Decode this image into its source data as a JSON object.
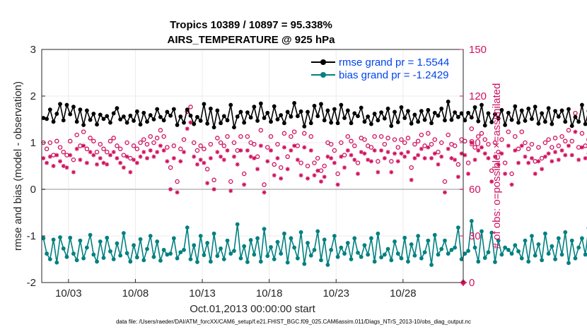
{
  "chart_data": {
    "type": "line",
    "title_line1": "Tropics 10389 / 10897 = 95.338%",
    "title_line2": "AIRS_TEMPERATURE @ 925 hPa",
    "xlabel": "Oct.01,2013 00:00:00 start",
    "ylabel": "rmse and bias (model - observation)",
    "ylabel_right": "# of obs: o=possible; ×=assimilated",
    "footnote": "data file: /Users/raeder/DAI/ATM_forcXX/CAM6_setup/f.e21.FHIST_BGC.f09_025.CAM6assim.011/Diags_NTrS_2013-10/obs_diag_output.nc",
    "xlim": [
      1,
      32.5
    ],
    "ylim": [
      -2,
      3
    ],
    "ylim_right": [
      0,
      150
    ],
    "x_ticks": [
      3,
      8,
      13,
      18,
      23,
      28
    ],
    "x_tick_labels": [
      "10/03",
      "10/08",
      "10/13",
      "10/18",
      "10/23",
      "10/28"
    ],
    "y_ticks": [
      -2,
      -1,
      0,
      1,
      2,
      3
    ],
    "y_tick_labels": [
      "-2",
      "-1",
      "0",
      "1",
      "2",
      "3"
    ],
    "y_right_ticks": [
      0,
      30,
      60,
      90,
      120,
      150
    ],
    "y_right_tick_labels": [
      "0",
      "30",
      "60",
      "90",
      "120",
      "150"
    ],
    "grid": true,
    "legend_position": "top-right",
    "colors": {
      "rmse": "#000000",
      "bias": "#008080",
      "obs": "#d0105f",
      "zero_line": "#c8c8c8",
      "grid": "#ebebeb",
      "axis": "#262626",
      "legend_text": "#0044ee"
    },
    "series": [
      {
        "name": "rmse grand pr = 1.5544",
        "x_start": 1.125,
        "x_step": 0.25,
        "values": [
          1.53,
          1.51,
          1.71,
          1.45,
          1.62,
          1.83,
          1.48,
          1.81,
          1.61,
          1.77,
          1.45,
          1.71,
          1.38,
          1.69,
          1.49,
          1.62,
          1.39,
          1.6,
          1.51,
          1.57,
          1.43,
          1.63,
          1.74,
          1.5,
          1.56,
          1.43,
          1.58,
          1.47,
          1.67,
          1.39,
          1.64,
          1.45,
          1.59,
          1.5,
          1.72,
          1.55,
          1.48,
          1.66,
          1.58,
          1.72,
          1.38,
          1.56,
          1.43,
          1.71,
          1.58,
          1.4,
          1.55,
          1.47,
          1.83,
          1.41,
          1.73,
          1.33,
          1.69,
          1.42,
          1.57,
          1.48,
          1.81,
          1.33,
          1.56,
          1.66,
          1.43,
          1.65,
          1.54,
          1.77,
          1.47,
          1.84,
          1.53,
          1.64,
          1.45,
          1.78,
          1.5,
          1.59,
          1.42,
          1.66,
          1.56,
          1.85,
          1.57,
          1.67,
          1.35,
          1.66,
          1.42,
          1.79,
          1.57,
          1.83,
          1.48,
          1.69,
          1.43,
          1.72,
          1.42,
          1.81,
          1.53,
          1.69,
          1.42,
          1.63,
          1.57,
          1.75,
          1.45,
          1.56,
          1.4,
          1.62,
          1.48,
          1.65,
          1.52,
          1.73,
          1.36,
          1.66,
          1.44,
          1.76,
          1.53,
          1.68,
          1.41,
          1.6,
          1.45,
          1.68,
          1.49,
          1.7,
          1.42,
          1.64,
          1.58,
          1.73,
          1.48,
          1.88,
          1.49,
          1.65,
          1.55,
          1.63,
          1.48,
          1.64,
          1.54,
          1.76,
          1.46,
          1.81,
          1.37,
          1.63,
          1.44,
          1.61,
          1.52,
          1.7,
          1.38,
          1.64,
          1.49,
          1.78,
          1.43,
          1.69,
          1.47,
          1.73,
          1.51,
          1.77,
          1.41,
          1.63,
          1.45,
          1.74,
          1.4,
          1.68,
          1.56,
          1.69,
          1.45,
          1.72,
          1.36,
          1.55,
          1.45,
          1.81,
          1.4,
          1.68,
          1.55,
          1.66,
          1.48,
          1.62,
          1.4,
          1.76,
          1.33,
          1.54,
          1.57,
          1.85,
          1.33,
          1.58,
          1.48,
          1.43
        ]
      },
      {
        "name": "bias grand pr = -1.2429",
        "x_start": 1.125,
        "x_step": 0.25,
        "values": [
          -1.05,
          -1.38,
          -1.5,
          -1.08,
          -1.57,
          -1.03,
          -1.27,
          -1.45,
          -1.04,
          -1.38,
          -1.52,
          -1.1,
          -1.48,
          -1.25,
          -0.98,
          -1.4,
          -1.55,
          -1.12,
          -1.47,
          -1.04,
          -1.33,
          -1.5,
          -1.16,
          -1.42,
          -0.94,
          -1.37,
          -1.55,
          -1.2,
          -1.46,
          -1.07,
          -1.52,
          -1.28,
          -1.0,
          -1.45,
          -1.12,
          -1.53,
          -1.3,
          -1.4,
          -1.38,
          -1.05,
          -1.48,
          -1.35,
          -1.3,
          -0.82,
          -1.5,
          -1.2,
          -1.56,
          -1.0,
          -1.41,
          -1.15,
          -1.55,
          -0.95,
          -1.43,
          -1.27,
          -1.5,
          -1.1,
          -1.38,
          -1.32,
          -0.75,
          -1.48,
          -1.22,
          -1.56,
          -1.09,
          -1.4,
          -1.05,
          -1.55,
          -0.85,
          -1.43,
          -1.24,
          -1.5,
          -1.13,
          -1.38,
          -0.95,
          -1.57,
          -1.05,
          -1.25,
          -1.48,
          -0.92,
          -1.6,
          -1.15,
          -1.42,
          -1.3,
          -0.9,
          -1.52,
          -1.08,
          -1.62,
          -1.3,
          -1.0,
          -1.45,
          -1.25,
          -1.38,
          -1.15,
          -1.5,
          -1.05,
          -1.36,
          -1.45,
          -1.2,
          -1.4,
          -1.05,
          -1.55,
          -0.95,
          -1.46,
          -1.4,
          -1.28,
          -1.52,
          -1.12,
          -1.38,
          -1.48,
          -1.04,
          -1.55,
          -1.18,
          -1.42,
          -1.0,
          -1.48,
          -1.35,
          -1.1,
          -1.62,
          -0.98,
          -1.4,
          -1.28,
          -1.1,
          -1.38,
          -1.3,
          -1.25,
          -0.82,
          -1.5,
          -1.38,
          -1.32,
          -0.68,
          -1.25,
          -1.55,
          -0.9,
          -1.47,
          -1.35,
          -0.93,
          -1.56,
          -1.1,
          -1.4,
          -1.25,
          -1.3,
          -1.38,
          -1.2,
          -1.33,
          -1.48,
          -1.1,
          -1.55,
          -1.0,
          -1.42,
          -1.18,
          -1.52,
          -0.95,
          -1.38,
          -1.22,
          -1.5,
          -1.05,
          -1.4,
          -0.92,
          -1.58,
          -1.1,
          -1.48,
          -1.25,
          -1.05,
          -1.4,
          -0.83,
          -1.55,
          -1.28,
          -1.42,
          -1.0,
          -1.38,
          -1.2,
          -1.5,
          -0.98,
          -1.37,
          -1.48,
          -1.28,
          -1.55,
          -1.15,
          -1.58,
          -1.05,
          -1.4,
          -1.2,
          -1.3
        ]
      },
      {
        "name": "obs possible",
        "x_start": 1.125,
        "x_step": 0.25,
        "values": [
          90,
          86,
          90,
          82,
          91,
          87,
          84,
          82,
          91,
          79,
          95,
          88,
          97,
          86,
          93,
          91,
          84,
          89,
          86,
          84,
          91,
          93,
          88,
          86,
          82,
          90,
          80,
          88,
          86,
          90,
          92,
          89,
          94,
          90,
          93,
          98,
          94,
          87,
          74,
          88,
          65,
          86,
          92,
          110,
          113,
          90,
          85,
          88,
          86,
          73,
          89,
          66,
          93,
          90,
          88,
          94,
          65,
          90,
          85,
          94,
          70,
          94,
          90,
          89,
          81,
          98,
          63,
          87,
          94,
          76,
          89,
          74,
          96,
          81,
          94,
          97,
          88,
          77,
          96,
          75,
          94,
          77,
          80,
          72,
          75,
          90,
          89,
          85,
          70,
          90,
          82,
          94,
          91,
          88,
          77,
          93,
          92,
          88,
          87,
          94,
          78,
          94,
          89,
          93,
          78,
          92,
          87,
          92,
          90,
          93,
          74,
          89,
          91,
          95,
          88,
          96,
          89,
          92,
          84,
          90,
          65,
          95,
          89,
          88,
          76,
          92,
          91,
          77,
          99,
          87,
          94,
          96,
          92,
          89,
          72,
          90,
          84,
          92,
          77,
          97,
          70,
          94,
          86,
          97,
          90,
          86,
          89,
          78,
          87,
          80,
          90,
          92,
          87,
          93,
          88,
          94,
          91,
          98,
          91,
          109,
          87,
          96,
          88,
          92,
          94,
          101,
          88,
          91,
          93,
          96,
          90,
          88,
          85,
          90,
          96,
          88,
          81,
          90,
          100,
          93
        ]
      },
      {
        "name": "obs assimilated",
        "x_start": 1.125,
        "x_step": 0.25,
        "values": [
          80,
          77,
          81,
          75,
          82,
          78,
          75,
          74,
          82,
          71,
          86,
          79,
          88,
          77,
          84,
          82,
          76,
          80,
          77,
          76,
          82,
          84,
          80,
          77,
          74,
          81,
          71,
          79,
          77,
          81,
          84,
          80,
          85,
          81,
          84,
          88,
          85,
          78,
          60,
          80,
          58,
          78,
          84,
          99,
          103,
          81,
          76,
          79,
          77,
          64,
          80,
          60,
          84,
          81,
          79,
          85,
          59,
          81,
          76,
          85,
          63,
          85,
          81,
          80,
          73,
          88,
          58,
          78,
          85,
          69,
          80,
          67,
          87,
          73,
          85,
          88,
          79,
          69,
          87,
          67,
          85,
          69,
          72,
          65,
          68,
          81,
          80,
          77,
          63,
          81,
          74,
          85,
          82,
          79,
          70,
          84,
          83,
          79,
          78,
          85,
          71,
          85,
          80,
          84,
          71,
          83,
          78,
          83,
          81,
          84,
          66,
          80,
          82,
          86,
          80,
          87,
          80,
          83,
          76,
          81,
          58,
          86,
          80,
          79,
          68,
          83,
          82,
          70,
          90,
          79,
          85,
          87,
          83,
          80,
          65,
          81,
          76,
          83,
          70,
          88,
          63,
          85,
          77,
          88,
          81,
          77,
          80,
          70,
          78,
          73,
          81,
          83,
          78,
          84,
          79,
          85,
          82,
          88,
          82,
          97,
          79,
          87,
          80,
          83,
          85,
          92,
          80,
          82,
          84,
          87,
          81,
          80,
          77,
          81,
          86,
          80,
          73,
          81,
          90,
          84
        ]
      }
    ],
    "end_marker_value": 0
  }
}
